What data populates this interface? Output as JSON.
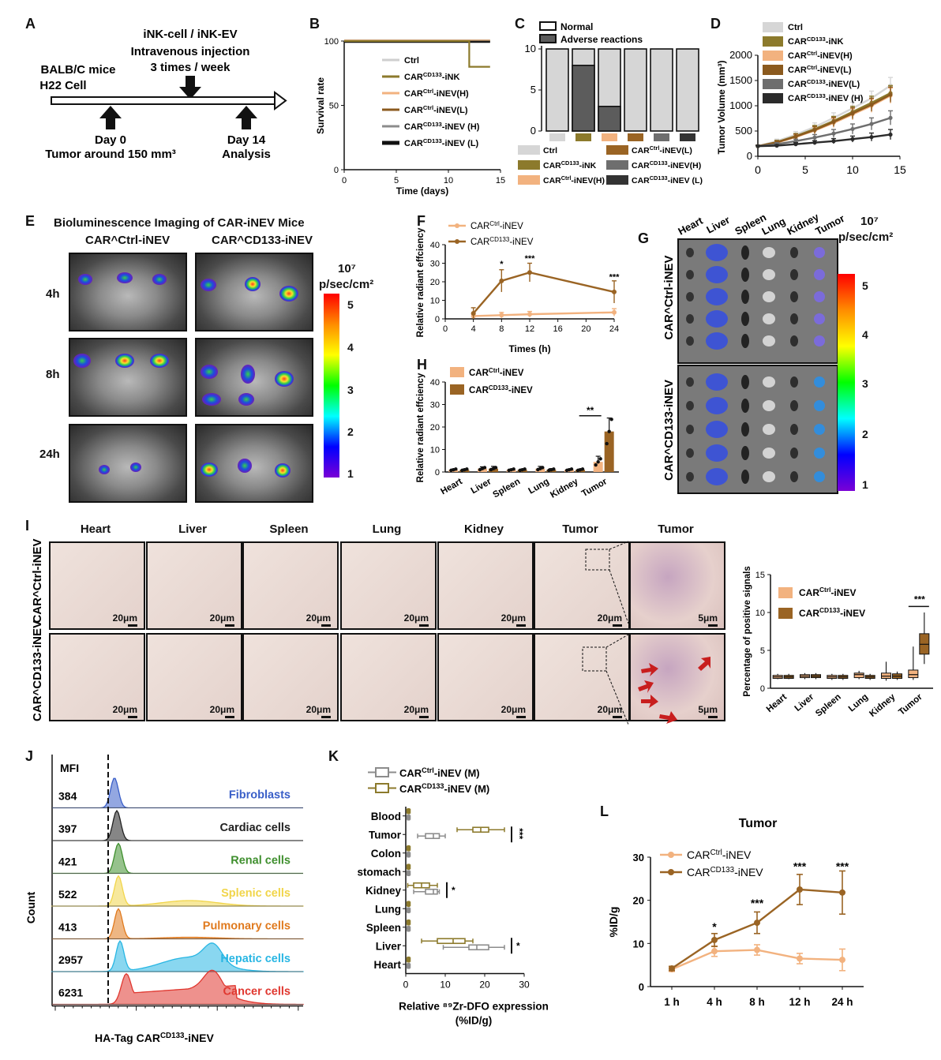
{
  "panelA": {
    "letter": "A",
    "line1": "iNK-cell / iNK-EV",
    "line2": "Intravenous injection",
    "line3": "3 times / week",
    "mice": "BALB/C mice",
    "cell": "H22 Cell",
    "day0": "Day 0",
    "tumor": "Tumor around 150 mm³",
    "day14": "Day 14",
    "analysis": "Analysis"
  },
  "panelB": {
    "letter": "B",
    "ylabel": "Survival rate",
    "xlabel": "Time (days)",
    "legend": [
      "Ctrl",
      "CAR^CD133-iNK",
      "CAR^Ctrl-iNEV(H)",
      "CAR^Ctrl-iNEV(L)",
      "CAR^CD133-iNEV (H)",
      "CAR^CD133-iNEV (L)"
    ]
  },
  "panelC": {
    "letter": "C",
    "legend_top": [
      "Normal",
      "Adverse reactions"
    ],
    "legend_bottom": [
      "Ctrl",
      "CAR^CD133-iNK",
      "CAR^Ctrl-iNEV(H)",
      "CAR^Ctrl-iNEV(L)",
      "CAR^CD133-iNEV(H)",
      "CAR^CD133-iNEV (L)"
    ]
  },
  "panelD": {
    "letter": "D",
    "ylabel": "Tumor Volume (mm³)",
    "legend": [
      "Ctrl",
      "CAR^CD133-iNK",
      "CAR^Ctrl-iNEV(H)",
      "CAR^Ctrl-iNEV(L)",
      "CAR^CD133-iNEV(L)",
      "CAR^CD133-iNEV (H)"
    ]
  },
  "panelE": {
    "letter": "E",
    "title": "Bioluminescence Imaging of CAR-iNEV Mice",
    "col1": "CAR^Ctrl-iNEV",
    "col2": "CAR^CD133-iNEV",
    "rows": [
      "4h",
      "8h",
      "24h"
    ],
    "scale_exp": "10⁷",
    "scale_unit": "p/sec/cm²",
    "scale_ticks": [
      "5",
      "4",
      "3",
      "2",
      "1"
    ]
  },
  "panelF": {
    "letter": "F",
    "ylabel": "Relative radiant effciency",
    "xlabel": "Times (h)",
    "legend": [
      "CAR^Ctrl-iNEV",
      "CAR^CD133-iNEV"
    ],
    "stars": [
      "*",
      "***",
      "***"
    ]
  },
  "panelG": {
    "letter": "G",
    "organs": [
      "Heart",
      "Liver",
      "Spleen",
      "Lung",
      "Kidney",
      "Tumor"
    ],
    "row1": "CAR^Ctrl-iNEV",
    "row2": "CAR^CD133-iNEV",
    "scale_exp": "10⁷",
    "scale_unit": "p/sec/cm²",
    "scale_ticks": [
      "5",
      "4",
      "3",
      "2",
      "1"
    ]
  },
  "panelH": {
    "letter": "H",
    "ylabel": "Relative radiant effciency",
    "legend": [
      "CAR^Ctrl-iNEV",
      "CAR^CD133-iNEV"
    ],
    "stars": "**"
  },
  "panelI": {
    "letter": "I",
    "columns": [
      "Heart",
      "Liver",
      "Spleen",
      "Lung",
      "Kidney",
      "Tumor",
      "Tumor"
    ],
    "row1": "CAR^Ctrl-iNEV",
    "row2": "CAR^CD133-iNEV",
    "scale20": "20μm",
    "scale5": "5μm",
    "ylabel": "Percentage of positive signals",
    "legend": [
      "CAR^Ctrl-iNEV",
      "CAR^CD133-iNEV"
    ],
    "stars": "***"
  },
  "panelJ": {
    "letter": "J",
    "mfi": "MFI",
    "ylabel": "Count",
    "xlabel": "HA-Tag CAR^CD133-iNEV",
    "rows": [
      {
        "value": "384",
        "label": "Fibroblasts",
        "color": "#3a5fc8"
      },
      {
        "value": "397",
        "label": "Cardiac cells",
        "color": "#222222"
      },
      {
        "value": "421",
        "label": "Renal cells",
        "color": "#3f8f2e"
      },
      {
        "value": "522",
        "label": "Splenic cells",
        "color": "#f1d54a"
      },
      {
        "value": "413",
        "label": "Pulmonary cells",
        "color": "#e07a1e"
      },
      {
        "value": "2957",
        "label": "Hepatic cells",
        "color": "#28b6e3"
      },
      {
        "value": "6231",
        "label": "Cancer cells",
        "color": "#e0372f"
      }
    ]
  },
  "panelK": {
    "letter": "K",
    "legend": [
      "CAR^Ctrl-iNEV (M)",
      "CAR^CD133-iNEV (M)"
    ],
    "xlabel1": "Relative ⁸⁹Zr-DFO expression",
    "xlabel2": "(%ID/g)",
    "stars": [
      "***",
      "*",
      "*"
    ]
  },
  "panelL": {
    "letter": "L",
    "title": "Tumor",
    "ylabel": "%ID/g",
    "legend": [
      "CAR^Ctrl-iNEV",
      "CAR^CD133-iNEV"
    ],
    "stars": [
      "*",
      "***",
      "***",
      "***"
    ]
  },
  "chart_data": [
    {
      "id": "B",
      "type": "line",
      "xlabel": "Time (days)",
      "ylabel": "Survival rate",
      "xlim": [
        0,
        15
      ],
      "ylim": [
        0,
        100
      ],
      "xticks": [
        0,
        5,
        10,
        15
      ],
      "yticks": [
        0,
        50,
        100
      ],
      "series": [
        {
          "name": "Ctrl",
          "x": [
            0,
            14
          ],
          "y": [
            100,
            100
          ],
          "color": "#cfcfcf"
        },
        {
          "name": "CAR^CD133-iNK",
          "x": [
            0,
            12,
            12,
            14
          ],
          "y": [
            100,
            100,
            80,
            80
          ],
          "color": "#8c7a2c"
        },
        {
          "name": "CAR^Ctrl-iNEV(H)",
          "x": [
            0,
            14
          ],
          "y": [
            100,
            100
          ],
          "color": "#f2b27f"
        },
        {
          "name": "CAR^Ctrl-iNEV(L)",
          "x": [
            0,
            14
          ],
          "y": [
            100,
            100
          ],
          "color": "#8b5a1e"
        },
        {
          "name": "CAR^CD133-iNEV (H)",
          "x": [
            0,
            14
          ],
          "y": [
            100,
            100
          ],
          "color": "#8c8c8c"
        },
        {
          "name": "CAR^CD133-iNEV (L)",
          "x": [
            0,
            14
          ],
          "y": [
            100,
            100
          ],
          "color": "#111111"
        }
      ]
    },
    {
      "id": "C",
      "type": "bar",
      "ylim": [
        0,
        10
      ],
      "yticks": [
        0,
        5,
        10
      ],
      "categories": [
        "Ctrl",
        "CAR^CD133-iNK",
        "CAR^Ctrl-iNEV(H)",
        "CAR^Ctrl-iNEV(L)",
        "CAR^CD133-iNEV(H)",
        "CAR^CD133-iNEV (L)"
      ],
      "series": [
        {
          "name": "Adverse reactions",
          "values": [
            0,
            8,
            3,
            0,
            0,
            0
          ]
        },
        {
          "name": "Normal",
          "values": [
            10,
            2,
            7,
            10,
            10,
            10
          ]
        }
      ],
      "group_colors": [
        "#d6d6d6",
        "#8c7a2c",
        "#f2b27f",
        "#9a6424",
        "#6e6e6e",
        "#333333"
      ]
    },
    {
      "id": "D",
      "type": "line",
      "ylabel": "Tumor Volume (mm³)",
      "xlim": [
        0,
        15
      ],
      "ylim": [
        0,
        2000
      ],
      "xticks": [
        0,
        5,
        10,
        15
      ],
      "yticks": [
        0,
        500,
        1000,
        1500,
        2000
      ],
      "x": [
        0,
        2,
        4,
        6,
        8,
        10,
        12,
        14
      ],
      "series": [
        {
          "name": "Ctrl",
          "values": [
            200,
            300,
            430,
            580,
            760,
            950,
            1150,
            1400
          ],
          "err": [
            20,
            40,
            60,
            80,
            100,
            120,
            140,
            160
          ],
          "color": "#d6d6d6"
        },
        {
          "name": "CAR^CD133-iNK",
          "values": [
            200,
            280,
            400,
            540,
            700,
            880,
            1060,
            1250
          ],
          "err": [
            20,
            35,
            50,
            70,
            90,
            110,
            130,
            150
          ],
          "color": "#8c7a2c"
        },
        {
          "name": "CAR^Ctrl-iNEV(H)",
          "values": [
            200,
            270,
            380,
            510,
            660,
            830,
            1000,
            1200
          ],
          "err": [
            20,
            30,
            50,
            70,
            90,
            110,
            130,
            150
          ],
          "color": "#f2b27f"
        },
        {
          "name": "CAR^Ctrl-iNEV(L)",
          "values": [
            200,
            275,
            390,
            520,
            680,
            850,
            1020,
            1220
          ],
          "err": [
            20,
            30,
            50,
            70,
            90,
            110,
            130,
            150
          ],
          "color": "#8b5a1e"
        },
        {
          "name": "CAR^CD133-iNEV(L)",
          "values": [
            200,
            240,
            300,
            370,
            450,
            540,
            640,
            760
          ],
          "err": [
            20,
            30,
            40,
            60,
            80,
            100,
            120,
            140
          ],
          "color": "#6e6e6e"
        },
        {
          "name": "CAR^CD133-iNEV (H)",
          "values": [
            200,
            210,
            240,
            270,
            300,
            340,
            380,
            430
          ],
          "err": [
            15,
            20,
            30,
            40,
            50,
            60,
            80,
            100
          ],
          "color": "#2b2b2b"
        }
      ]
    },
    {
      "id": "F",
      "type": "line",
      "ylabel": "Relative radiant effciency",
      "xlabel": "Times (h)",
      "xlim": [
        0,
        24
      ],
      "ylim": [
        0,
        40
      ],
      "xticks": [
        0,
        4,
        8,
        12,
        16,
        20,
        24
      ],
      "yticks": [
        0,
        10,
        20,
        30,
        40
      ],
      "x": [
        4,
        8,
        12,
        24
      ],
      "series": [
        {
          "name": "CAR^Ctrl-iNEV",
          "values": [
            1.5,
            2,
            2.5,
            3.5
          ],
          "err": [
            1,
            1.5,
            1.5,
            2
          ],
          "color": "#f2b27f"
        },
        {
          "name": "CAR^CD133-iNEV",
          "values": [
            3,
            20.5,
            25,
            14.5
          ],
          "err": [
            3,
            6,
            5,
            6
          ],
          "color": "#9a6424"
        }
      ]
    },
    {
      "id": "H",
      "type": "bar",
      "ylabel": "Relative radiant effciency",
      "ylim": [
        0,
        40
      ],
      "yticks": [
        0,
        10,
        20,
        30,
        40
      ],
      "categories": [
        "Heart",
        "Liver",
        "Spleen",
        "Lung",
        "Kidney",
        "Tumor"
      ],
      "series": [
        {
          "name": "CAR^Ctrl-iNEV",
          "values": [
            1,
            1.5,
            1,
            1.5,
            1,
            4.5
          ],
          "err": [
            0.3,
            0.8,
            0.3,
            1,
            0.3,
            2.5
          ],
          "color": "#f2b27f"
        },
        {
          "name": "CAR^CD133-iNEV",
          "values": [
            1,
            1.5,
            1,
            1,
            1,
            18
          ],
          "err": [
            0.3,
            1,
            0.3,
            0.5,
            0.3,
            6
          ],
          "color": "#9a6424"
        }
      ]
    },
    {
      "id": "I",
      "type": "box",
      "ylabel": "Percentage of positive signals",
      "ylim": [
        0,
        15
      ],
      "yticks": [
        0,
        5,
        10,
        15
      ],
      "categories": [
        "Heart",
        "Liver",
        "Spleen",
        "Lung",
        "Kidney",
        "Tumor"
      ],
      "series": [
        {
          "name": "CAR^Ctrl-iNEV",
          "color": "#f2b27f",
          "boxes": [
            [
              1.2,
              1.3,
              1.5,
              1.7,
              1.9
            ],
            [
              1.2,
              1.4,
              1.6,
              1.8,
              2.0
            ],
            [
              1.1,
              1.3,
              1.5,
              1.7,
              1.9
            ],
            [
              1.2,
              1.4,
              1.8,
              2.0,
              2.3
            ],
            [
              1.0,
              1.3,
              1.6,
              2.0,
              3.5
            ],
            [
              1.1,
              1.4,
              1.8,
              2.4,
              5.5
            ]
          ]
        },
        {
          "name": "CAR^CD133-iNEV",
          "color": "#9a6424",
          "boxes": [
            [
              1.2,
              1.3,
              1.5,
              1.7,
              1.9
            ],
            [
              1.2,
              1.4,
              1.6,
              1.8,
              2.0
            ],
            [
              1.1,
              1.3,
              1.5,
              1.7,
              1.9
            ],
            [
              1.1,
              1.3,
              1.5,
              1.7,
              1.9
            ],
            [
              1.1,
              1.3,
              1.6,
              1.9,
              2.2
            ],
            [
              3.2,
              4.5,
              5.8,
              7.2,
              10
            ]
          ]
        }
      ]
    },
    {
      "id": "K",
      "type": "box",
      "orientation": "horizontal",
      "xlim": [
        0,
        30
      ],
      "xticks": [
        0,
        10,
        20,
        30
      ],
      "categories": [
        "Blood",
        "Tumor",
        "Colon",
        "stomach",
        "Kidney",
        "Lung",
        "Spleen",
        "Liver",
        "Heart"
      ],
      "series": [
        {
          "name": "CAR^Ctrl-iNEV (M)",
          "color": "#8c8c8c",
          "boxes": [
            [
              0.3,
              0.5,
              0.7,
              0.9,
              1.1
            ],
            [
              3,
              5,
              7,
              8.5,
              10
            ],
            [
              0.3,
              0.5,
              0.7,
              0.9,
              1.1
            ],
            [
              0.3,
              0.5,
              0.7,
              0.9,
              1.1
            ],
            [
              2,
              5,
              7,
              8,
              8.5
            ],
            [
              0.3,
              0.5,
              0.7,
              0.9,
              1.1
            ],
            [
              0.3,
              0.5,
              0.7,
              0.9,
              1.1
            ],
            [
              9.5,
              16,
              18,
              21,
              25
            ],
            [
              0.3,
              0.5,
              0.7,
              0.9,
              1.1
            ]
          ]
        },
        {
          "name": "CAR^CD133-iNEV (M)",
          "color": "#8c7a2c",
          "boxes": [
            [
              0.3,
              0.5,
              0.7,
              0.9,
              1.1
            ],
            [
              13,
              17,
              19,
              21,
              25
            ],
            [
              0.3,
              0.5,
              0.7,
              0.9,
              1.1
            ],
            [
              0.3,
              0.5,
              0.7,
              0.9,
              1.1
            ],
            [
              0.5,
              2,
              4,
              6,
              8
            ],
            [
              0.3,
              0.5,
              0.7,
              0.9,
              1.1
            ],
            [
              0.3,
              0.5,
              0.7,
              0.9,
              1.1
            ],
            [
              4,
              8,
              12,
              15,
              17
            ],
            [
              0.3,
              0.5,
              0.7,
              0.9,
              1.1
            ]
          ]
        }
      ]
    },
    {
      "id": "L",
      "type": "line",
      "title": "Tumor",
      "ylabel": "%ID/g",
      "ylim": [
        0,
        30
      ],
      "yticks": [
        0,
        10,
        20,
        30
      ],
      "categories": [
        "1 h",
        "4 h",
        "8 h",
        "12 h",
        "24 h"
      ],
      "series": [
        {
          "name": "CAR^Ctrl-iNEV",
          "values": [
            4,
            8.2,
            8.5,
            6.5,
            6.2
          ],
          "err": [
            0.5,
            1.2,
            1.2,
            1.2,
            2.5
          ],
          "color": "#f2b27f"
        },
        {
          "name": "CAR^CD133-iNEV",
          "values": [
            4.2,
            10.8,
            14.8,
            22.5,
            21.8
          ],
          "err": [
            0.5,
            1.5,
            2.5,
            3.5,
            5
          ],
          "color": "#9a6424"
        }
      ]
    }
  ]
}
